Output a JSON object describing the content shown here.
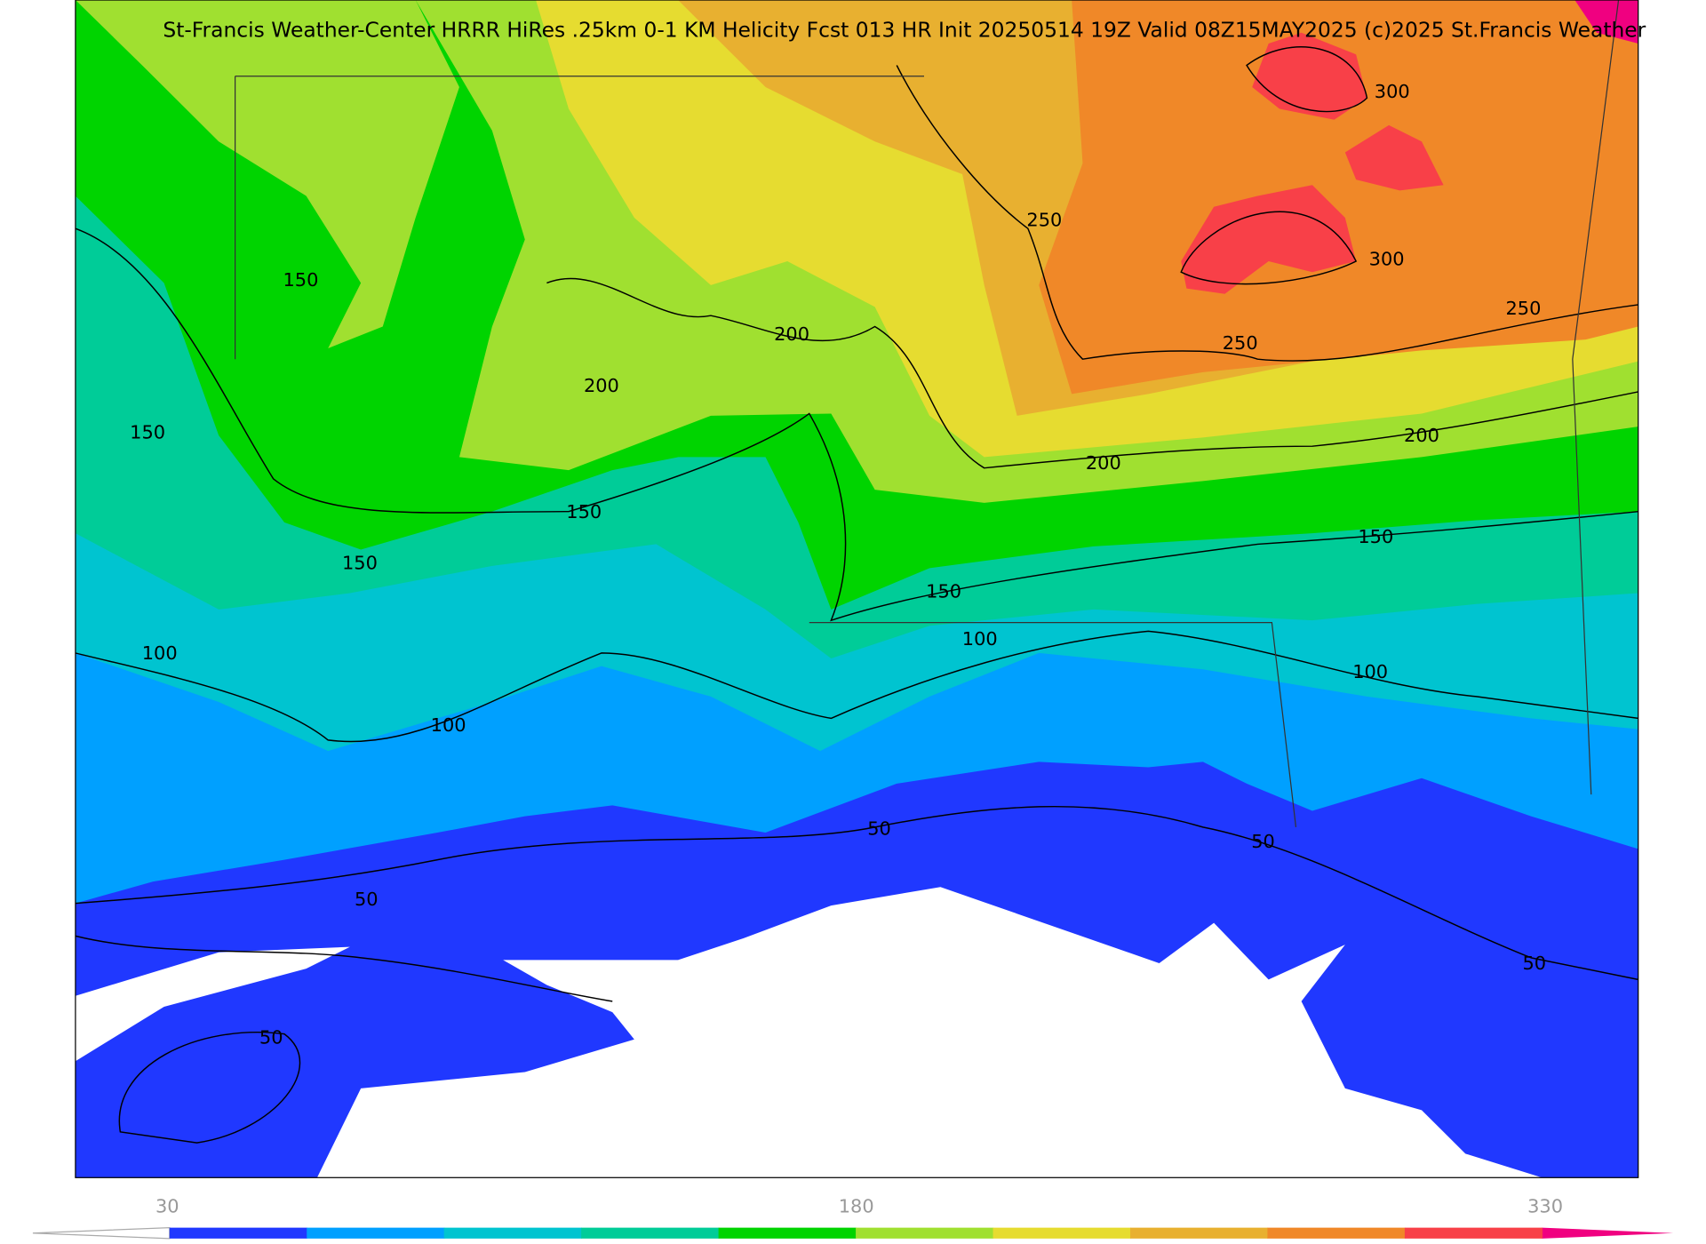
{
  "header": {
    "title": "St-Francis Weather-Center HRRR HiRes .25km 0-1 KM Helicity Fcst 013 HR Init 20250514 19Z  Valid 08Z15MAY2025    (c)2025 St.Francis Weather"
  },
  "contour_labels": [
    "150",
    "150",
    "150",
    "150",
    "150",
    "150",
    "200",
    "200",
    "200",
    "200",
    "250",
    "250",
    "250",
    "300",
    "300",
    "100",
    "100",
    "100",
    "100",
    "50",
    "50",
    "50",
    "50",
    "50"
  ],
  "colorbar": {
    "labels": [
      "30",
      "180",
      "330"
    ],
    "colors": [
      "#2038ff",
      "#00a0ff",
      "#00c4d0",
      "#00cc98",
      "#00d400",
      "#a0e030",
      "#e6dc30",
      "#e8b030",
      "#f08828",
      "#f84048"
    ]
  }
}
